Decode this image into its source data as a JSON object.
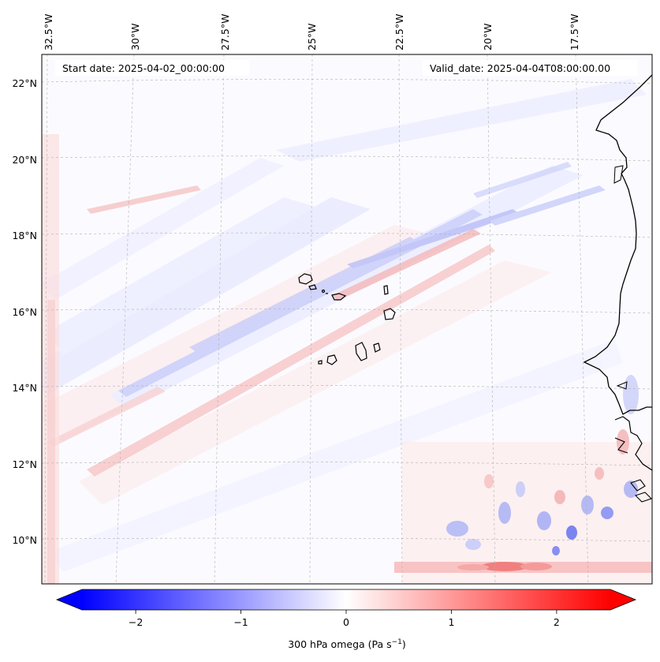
{
  "map": {
    "start_date_text": "Start date: 2025-04-02_00:00:00",
    "valid_date_text": "Valid_date: 2025-04-04T08:00:00.00",
    "longitude_labels": [
      "32.5°W",
      "30°W",
      "27.5°W",
      "25°W",
      "22.5°W",
      "20°W",
      "17.5°W"
    ],
    "latitude_labels": [
      "22°N",
      "20°N",
      "18°N",
      "16°N",
      "14°N",
      "12°N",
      "10°N"
    ],
    "variable": "300 hPa omega",
    "units": "Pa s-1",
    "extent": {
      "lon_min": -32.7,
      "lon_max": -15.5,
      "lat_min": 8.9,
      "lat_max": 22.8
    }
  },
  "colorbar": {
    "label_text": "300 hPa omega (Pa s",
    "label_exponent": "−1",
    "label_close": ")",
    "tick_labels": [
      "−2",
      "−1",
      "0",
      "1",
      "2"
    ],
    "tick_values": [
      -2,
      -1,
      0,
      1,
      2
    ],
    "range": [
      -2.75,
      2.75
    ],
    "colors": {
      "negative": "#0000ff",
      "center": "#ffffff",
      "positive": "#ff0000"
    }
  },
  "style": {
    "coastline_color": "#000000",
    "gridline_color": "#b0b0b0"
  }
}
